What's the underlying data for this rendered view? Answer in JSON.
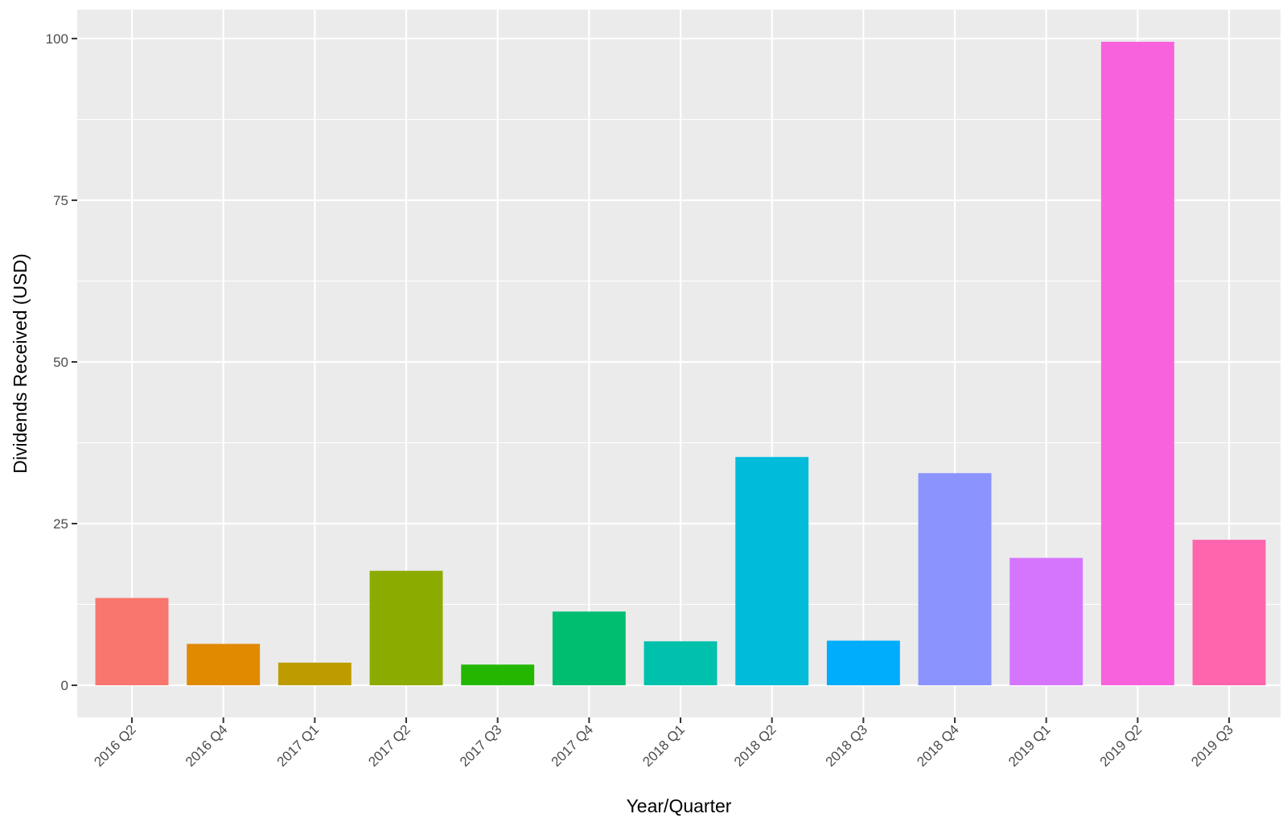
{
  "chart_data": {
    "type": "bar",
    "title": "",
    "xlabel": "Year/Quarter",
    "ylabel": "Dividends Received (USD)",
    "categories": [
      "2016 Q2",
      "2016 Q4",
      "2017 Q1",
      "2017 Q2",
      "2017 Q3",
      "2017 Q4",
      "2018 Q1",
      "2018 Q2",
      "2018 Q3",
      "2018 Q4",
      "2019 Q1",
      "2019 Q2",
      "2019 Q3"
    ],
    "values": [
      13.5,
      6.4,
      3.5,
      17.7,
      3.2,
      11.4,
      6.8,
      35.3,
      6.9,
      32.8,
      19.7,
      99.5,
      22.5
    ],
    "colors": [
      "#F8766D",
      "#E18A00",
      "#BE9C00",
      "#8CAB00",
      "#24B700",
      "#00BE70",
      "#00C1AB",
      "#00BBDA",
      "#00ACFC",
      "#8B93FF",
      "#D575FE",
      "#F962DD",
      "#FF65AC"
    ],
    "ylim": [
      -4.97,
      104.47
    ],
    "yticks": [
      0,
      25,
      50,
      75,
      100
    ],
    "grid": true,
    "legend": "none",
    "panel_background": "#EBEBEB",
    "grid_color": "#FFFFFF"
  }
}
